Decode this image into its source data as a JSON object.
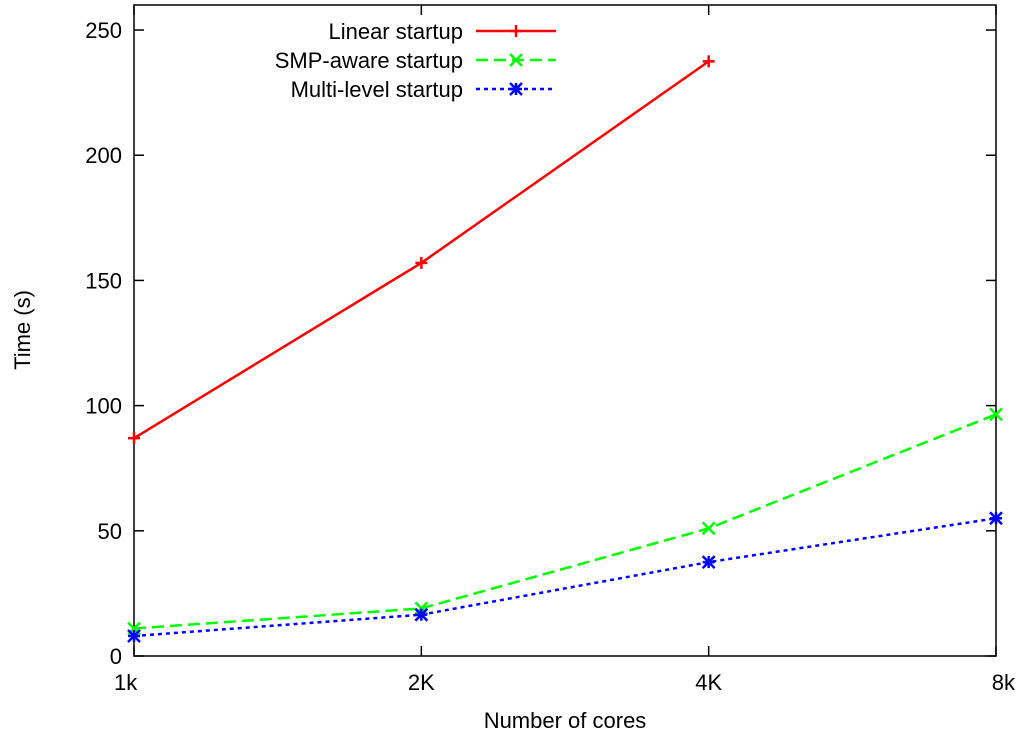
{
  "chart_data": {
    "type": "line",
    "title": "",
    "xlabel": "Number of cores",
    "ylabel": "Time (s)",
    "categories": [
      "1k",
      "2K",
      "4K",
      "8k"
    ],
    "ylim": [
      0,
      260
    ],
    "yticks": [
      0,
      50,
      100,
      150,
      200,
      250
    ],
    "grid": false,
    "legend_position": "top-center",
    "series": [
      {
        "name": "Linear startup",
        "values": [
          87,
          157,
          237.5,
          null
        ],
        "color": "#ff0000",
        "line_style": "solid",
        "marker": "plus"
      },
      {
        "name": "SMP-aware startup",
        "values": [
          11,
          19,
          51,
          96.5
        ],
        "color": "#00ff00",
        "line_style": "dashed",
        "marker": "cross"
      },
      {
        "name": "Multi-level startup",
        "values": [
          8,
          16.5,
          37.5,
          55
        ],
        "color": "#0000ff",
        "line_style": "dotted",
        "marker": "asterisk"
      }
    ]
  }
}
